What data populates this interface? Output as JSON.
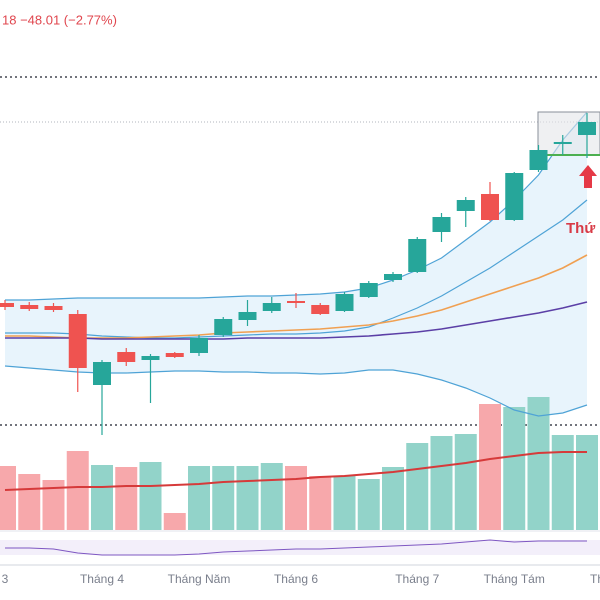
{
  "chart_data": {
    "type": "candlestick",
    "header": "18  −48.01 (−2.77%)",
    "annotation": "Thứ",
    "x_edge_label": "Th",
    "categories": [
      "3",
      null,
      null,
      null,
      "Tháng 4",
      null,
      null,
      null,
      "Tháng Năm",
      null,
      null,
      null,
      "Tháng 6",
      null,
      null,
      null,
      null,
      "Tháng 7",
      null,
      null,
      null,
      "Tháng Tám",
      null,
      null,
      null
    ],
    "ylim": [
      0,
      600
    ],
    "open": [
      297,
      295,
      294,
      286,
      215,
      248,
      240,
      247,
      247,
      265,
      280,
      289,
      299,
      295,
      289,
      303,
      320,
      328,
      368,
      389,
      406,
      380,
      430,
      456,
      465
    ],
    "close": [
      293,
      291,
      290,
      232,
      238,
      238,
      244,
      243,
      262,
      281,
      288,
      297,
      297,
      286,
      306,
      317,
      326,
      361,
      383,
      400,
      380,
      427,
      450,
      458,
      478
    ],
    "high": [
      300,
      298,
      297,
      290,
      240,
      252,
      246,
      248,
      265,
      283,
      300,
      303,
      307,
      297,
      308,
      319,
      328,
      363,
      387,
      403,
      418,
      428,
      455,
      465,
      487
    ],
    "low": [
      290,
      289,
      288,
      208,
      165,
      234,
      197,
      242,
      244,
      263,
      274,
      287,
      292,
      285,
      288,
      302,
      318,
      327,
      358,
      373,
      379,
      379,
      428,
      445,
      442
    ],
    "up_color": "#26a69a",
    "down_color": "#ef5350",
    "lines": [
      {
        "color": "#4fa3d6",
        "values": [
          300,
          300,
          301,
          302,
          302,
          302,
          302,
          302,
          302,
          303,
          304,
          304,
          305,
          306,
          308,
          312,
          320,
          330,
          342,
          360,
          378,
          400,
          425,
          460,
          488
        ]
      },
      {
        "color": "#4fa3d6",
        "values": [
          267,
          267,
          267,
          266,
          264,
          263,
          262,
          262,
          263,
          264,
          265,
          266,
          266,
          267,
          269,
          273,
          282,
          292,
          304,
          318,
          332,
          348,
          364,
          380,
          400
        ]
      },
      {
        "color": "#4fa3d6",
        "values": [
          234,
          232,
          230,
          228,
          227,
          227,
          228,
          229,
          229,
          228,
          228,
          227,
          227,
          226,
          227,
          230,
          230,
          226,
          220,
          212,
          202,
          190,
          184,
          187,
          195
        ]
      },
      {
        "color": "#f0a052",
        "values": [
          264,
          264,
          263,
          262,
          262,
          262,
          263,
          264,
          265,
          267,
          268,
          269,
          270,
          271,
          273,
          275,
          279,
          284,
          290,
          298,
          306,
          314,
          322,
          332,
          345
        ]
      },
      {
        "color": "#5b3fa6",
        "values": [
          262,
          262,
          262,
          262,
          261,
          261,
          261,
          261,
          261,
          261,
          262,
          262,
          262,
          262,
          263,
          264,
          266,
          268,
          271,
          275,
          279,
          283,
          287,
          292,
          298
        ]
      }
    ],
    "band_fill": "#e8f4fc",
    "levels": [
      523,
      478,
      175
    ],
    "volume": [
      64,
      56,
      50,
      79,
      65,
      63,
      68,
      17,
      64,
      64,
      64,
      67,
      64,
      54,
      54,
      51,
      63,
      87,
      94,
      96,
      126,
      123,
      133,
      95,
      95
    ],
    "volume_ylim": [
      0,
      140
    ],
    "volume_up_color": "#92d3c9",
    "volume_down_color": "#f7a8ab",
    "volume_ma": {
      "color": "#d63a3a",
      "values": [
        40,
        41,
        42,
        43,
        43,
        44,
        44,
        45,
        46,
        48,
        49,
        50,
        51,
        53,
        54,
        56,
        58,
        61,
        64,
        67,
        71,
        74,
        77,
        78,
        78
      ]
    },
    "indicator": {
      "color": "#7e57c2",
      "ylim": [
        0,
        25
      ],
      "values": [
        12,
        12,
        11,
        7,
        5,
        5,
        5,
        5,
        6,
        8,
        9,
        10,
        11,
        11,
        12,
        13,
        14,
        15,
        16,
        18,
        20,
        18,
        19,
        19,
        19
      ]
    }
  }
}
